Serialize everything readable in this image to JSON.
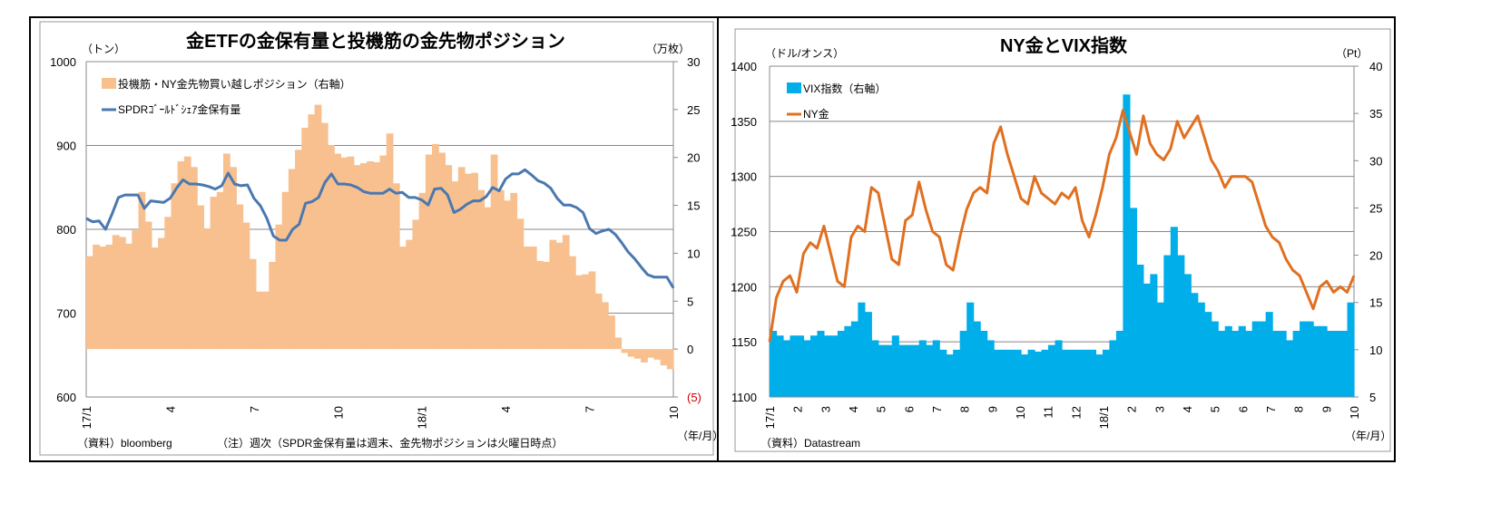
{
  "chart_data": [
    {
      "type": "bar+line",
      "title": "金ETFの金保有量と投機筋の金先物ポジション",
      "y_left_label": "（トン）",
      "y_right_label": "（万枚）",
      "x_unit_label": "（年/月）",
      "source": "（資料）bloomberg",
      "note": "（注）週次（SPDR金保有量は週末、金先物ポジションは火曜日時点）",
      "y_left_range": [
        600,
        1000
      ],
      "y_left_ticks": [
        "600",
        "700",
        "800",
        "900",
        "1000"
      ],
      "y_right_range": [
        -5,
        30
      ],
      "y_right_ticks": [
        "(5)",
        "0",
        "5",
        "10",
        "15",
        "20",
        "25",
        "30"
      ],
      "x_ticks": [
        "17/1",
        "4",
        "7",
        "10",
        "18/1",
        "4",
        "7",
        "10"
      ],
      "grid": true,
      "legend_placement": "top-left",
      "series": [
        {
          "name": "投機筋・NY金先物買い越しポジション（右軸）",
          "kind": "bar",
          "axis": "right",
          "color": "#f8c08f",
          "values": [
            9.7,
            10.9,
            10.7,
            10.9,
            11.9,
            11.7,
            11.0,
            12.4,
            16.4,
            13.3,
            10.6,
            11.6,
            13.8,
            17.3,
            19.6,
            20.1,
            19.0,
            15.0,
            12.6,
            15.9,
            16.4,
            20.4,
            19.0,
            15.1,
            13.2,
            9.4,
            6.0,
            6.0,
            9.1,
            13.0,
            16.4,
            18.8,
            20.8,
            23.1,
            24.5,
            25.5,
            23.6,
            21.3,
            20.4,
            20.0,
            20.1,
            19.2,
            19.4,
            19.6,
            19.5,
            20.2,
            22.5,
            17.3,
            10.7,
            11.4,
            13.5,
            16.3,
            20.3,
            21.4,
            20.5,
            19.2,
            17.5,
            19.0,
            18.3,
            18.4,
            16.6,
            14.8,
            20.3,
            16.6,
            15.5,
            16.3,
            13.6,
            10.7,
            10.7,
            9.2,
            9.1,
            11.4,
            11.1,
            11.9,
            9.7,
            7.7,
            7.8,
            8.1,
            5.8,
            4.9,
            3.5,
            1.2,
            -0.4,
            -0.8,
            -1.0,
            -1.4,
            -0.9,
            -1.1,
            -1.7,
            -2.1
          ]
        },
        {
          "name": "SPDRｺﾞｰﾙﾄﾞｼｪｱ金保有量",
          "kind": "line",
          "axis": "left",
          "color": "#4a78b0",
          "values": [
            813,
            809,
            810,
            800,
            818,
            838,
            841,
            841,
            841,
            825,
            834,
            833,
            832,
            837,
            849,
            859,
            854,
            854,
            853,
            851,
            848,
            852,
            867,
            854,
            852,
            853,
            837,
            828,
            813,
            792,
            787,
            787,
            800,
            806,
            831,
            833,
            838,
            856,
            866,
            854,
            854,
            853,
            850,
            845,
            843,
            843,
            843,
            848,
            843,
            844,
            838,
            838,
            835,
            829,
            848,
            849,
            841,
            820,
            824,
            830,
            834,
            834,
            839,
            850,
            846,
            860,
            866,
            866,
            871,
            865,
            858,
            855,
            849,
            837,
            829,
            829,
            826,
            820,
            801,
            795,
            798,
            800,
            794,
            784,
            773,
            765,
            755,
            746,
            743,
            743,
            743,
            730
          ]
        }
      ]
    },
    {
      "type": "bar+line",
      "title": "NY金とVIX指数",
      "y_left_label": "（ドル/オンス）",
      "y_right_label": "（Pt）",
      "x_unit_label": "（年/月）",
      "source": "（資料）Datastream",
      "y_left_range": [
        1100,
        1400
      ],
      "y_left_ticks": [
        "1100",
        "1150",
        "1200",
        "1250",
        "1300",
        "1350",
        "1400"
      ],
      "y_right_range": [
        5,
        40
      ],
      "y_right_ticks": [
        "5",
        "10",
        "15",
        "20",
        "25",
        "30",
        "35",
        "40"
      ],
      "x_ticks": [
        "17/1",
        "2",
        "3",
        "4",
        "5",
        "6",
        "7",
        "8",
        "9",
        "10",
        "11",
        "12",
        "18/1",
        "2",
        "3",
        "4",
        "5",
        "6",
        "7",
        "8",
        "9",
        "10"
      ],
      "grid": true,
      "legend_placement": "top-left",
      "series": [
        {
          "name": "VIX指数（右軸）",
          "kind": "bar",
          "axis": "right",
          "color": "#00aeea",
          "values": [
            12,
            11.5,
            11,
            11.5,
            11.5,
            11,
            11.5,
            12,
            11.5,
            11.5,
            12,
            12.5,
            13,
            15,
            14,
            11,
            10.5,
            10.5,
            11.5,
            10.5,
            10.5,
            10.5,
            11,
            10.5,
            11,
            10,
            9.5,
            10,
            12,
            15,
            13,
            12,
            11,
            10,
            10,
            10,
            10,
            9.5,
            10,
            9.8,
            10,
            10.5,
            11,
            10,
            10,
            10,
            10,
            10,
            9.5,
            10,
            11,
            12,
            37,
            25,
            19,
            17,
            18,
            15,
            20,
            23,
            20,
            18,
            16,
            15,
            14,
            13,
            12,
            12.5,
            12,
            12.5,
            12,
            13,
            13,
            14,
            12,
            12,
            11,
            12,
            13,
            13,
            12.5,
            12.5,
            12,
            12,
            12,
            15
          ]
        },
        {
          "name": "NY金",
          "kind": "line",
          "axis": "left",
          "color": "#e07020",
          "values": [
            1150,
            1190,
            1205,
            1210,
            1195,
            1230,
            1240,
            1235,
            1255,
            1230,
            1205,
            1200,
            1245,
            1255,
            1250,
            1290,
            1285,
            1255,
            1225,
            1220,
            1260,
            1265,
            1295,
            1270,
            1250,
            1245,
            1220,
            1215,
            1245,
            1270,
            1285,
            1290,
            1285,
            1330,
            1345,
            1320,
            1300,
            1280,
            1275,
            1300,
            1285,
            1280,
            1275,
            1285,
            1280,
            1290,
            1260,
            1245,
            1265,
            1290,
            1320,
            1335,
            1360,
            1340,
            1320,
            1355,
            1330,
            1320,
            1315,
            1325,
            1350,
            1335,
            1345,
            1355,
            1335,
            1315,
            1305,
            1290,
            1300,
            1300,
            1300,
            1295,
            1275,
            1255,
            1245,
            1240,
            1225,
            1215,
            1210,
            1195,
            1180,
            1200,
            1205,
            1195,
            1200,
            1195,
            1210
          ]
        }
      ]
    }
  ]
}
